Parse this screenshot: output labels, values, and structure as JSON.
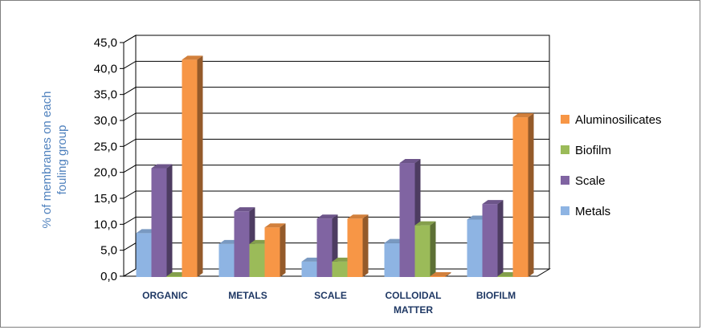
{
  "chart_data": {
    "type": "bar",
    "subtype": "3d-clustered-column",
    "ylabel": "% of membranes on each fouling group",
    "ylim": [
      0,
      45
    ],
    "yticks": [
      "0,0",
      "5,0",
      "10,0",
      "15,0",
      "20,0",
      "25,0",
      "30,0",
      "35,0",
      "40,0",
      "45,0"
    ],
    "categories": [
      {
        "label": "ORGANIC",
        "lines": [
          "ORGANIC"
        ]
      },
      {
        "label": "METALS",
        "lines": [
          "METALS"
        ]
      },
      {
        "label": "SCALE",
        "lines": [
          "SCALE"
        ]
      },
      {
        "label": "COLLOIDAL MATTER",
        "lines": [
          "COLLOIDAL",
          "MATTER"
        ]
      },
      {
        "label": "BIOFILM",
        "lines": [
          "BIOFILM"
        ]
      }
    ],
    "series": [
      {
        "name": "Metals",
        "color": "#8eb4e3",
        "values": [
          8.3,
          6.2,
          2.8,
          6.4,
          10.9
        ]
      },
      {
        "name": "Scale",
        "color": "#8064a2",
        "values": [
          20.8,
          12.5,
          11.1,
          21.8,
          13.9
        ]
      },
      {
        "name": "Biofilm",
        "color": "#9bbb59",
        "values": [
          0,
          6.2,
          2.8,
          9.8,
          0
        ]
      },
      {
        "name": "Aluminosilicates",
        "color": "#f79646",
        "values": [
          41.7,
          9.4,
          11.1,
          0,
          30.6
        ]
      }
    ],
    "legend_order": [
      "Aluminosilicates",
      "Biofilm",
      "Scale",
      "Metals"
    ],
    "legend_position": "right",
    "grid": true
  }
}
